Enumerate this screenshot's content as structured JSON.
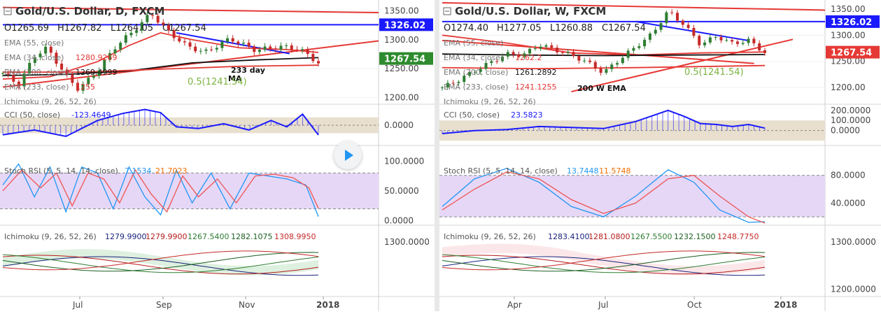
{
  "chart_data": [
    {
      "type": "candlestick",
      "title": "Gold/U.S. Dollar, D, FXCM",
      "ohlc": {
        "o": "O1265.69",
        "h": "H1267.82",
        "l": "L1264.05",
        "c": "C1267.54"
      },
      "price_axis": {
        "ticks": [
          "1350.00",
          "1300.00",
          "1250.00",
          "1200.00"
        ],
        "ylim": [
          1192,
          1364
        ]
      },
      "price_tags": [
        {
          "label": "1326.02",
          "value": 1326.02,
          "color": "#1a1aff"
        },
        {
          "label": "1267.54",
          "value": 1267.54,
          "color": "#2e8b2e"
        }
      ],
      "legend": [
        {
          "text": "EMA (55, close)",
          "value": "",
          "color": "#e53935"
        },
        {
          "text": "EMA (34, close)",
          "value": "1280.9269",
          "color": "#e53935"
        },
        {
          "text": "EMA (200, close)",
          "value": "1269.4999",
          "color": "#111111"
        },
        {
          "text": "EMA (233, close)",
          "value": "1255",
          "color": "#e53935"
        },
        {
          "text": "Ichimoku (9, 26, 52, 26)",
          "value": "",
          "color": "#888888"
        }
      ],
      "annotations": [
        "233 day",
        "MA",
        "0.5(1241.54)"
      ],
      "series": [
        {
          "name": "EMA 34",
          "color": "#e53935",
          "points": [
            [
              0,
              1232
            ],
            [
              0.15,
              1236
            ],
            [
              0.3,
              1262
            ],
            [
              0.4,
              1290
            ],
            [
              0.5,
              1312
            ],
            [
              0.6,
              1300
            ],
            [
              0.75,
              1286
            ],
            [
              0.9,
              1283
            ],
            [
              1,
              1278
            ]
          ]
        },
        {
          "name": "EMA 200",
          "color": "#111111",
          "points": [
            [
              0,
              1238
            ],
            [
              0.2,
              1240
            ],
            [
              0.4,
              1246
            ],
            [
              0.6,
              1260
            ],
            [
              0.8,
              1265
            ],
            [
              1,
              1269
            ]
          ]
        },
        {
          "name": "EMA 233",
          "color": "#e53935",
          "points": [
            [
              0,
              1244
            ],
            [
              0.25,
              1244
            ],
            [
              0.5,
              1249
            ],
            [
              0.75,
              1254
            ],
            [
              1,
              1256
            ]
          ]
        }
      ],
      "close_path": [
        [
          0,
          1242
        ],
        [
          0.05,
          1222
        ],
        [
          0.1,
          1272
        ],
        [
          0.14,
          1286
        ],
        [
          0.2,
          1238
        ],
        [
          0.24,
          1214
        ],
        [
          0.3,
          1246
        ],
        [
          0.36,
          1290
        ],
        [
          0.42,
          1318
        ],
        [
          0.47,
          1346
        ],
        [
          0.52,
          1316
        ],
        [
          0.58,
          1290
        ],
        [
          0.64,
          1278
        ],
        [
          0.72,
          1302
        ],
        [
          0.8,
          1282
        ],
        [
          0.88,
          1288
        ],
        [
          0.94,
          1284
        ],
        [
          1,
          1260
        ]
      ],
      "trendlines": [
        {
          "from": [
            0.0,
            1356
          ],
          "to": [
            1.0,
            1347
          ],
          "color": "#e53935"
        },
        {
          "from": [
            0.0,
            1218
          ],
          "to": [
            1.0,
            1298
          ],
          "color": "#e53935"
        },
        {
          "from": [
            0.55,
            1312
          ],
          "to": [
            0.82,
            1276
          ],
          "color": "#1a1aff"
        },
        {
          "from": [
            0.0,
            1326.02
          ],
          "to": [
            1.0,
            1326.02
          ],
          "color": "#1a1aff"
        }
      ],
      "x_labels": [
        "Jul",
        "Sep",
        "Nov",
        "2018"
      ],
      "indicators": [
        {
          "name": "CCI",
          "legend": "CCI (50, close)",
          "value": "-123.4649",
          "axis": [
            "0.0000"
          ],
          "band": [
            -100,
            100
          ],
          "ylim": [
            -220,
            240
          ],
          "path": [
            [
              0,
              -120
            ],
            [
              0.1,
              -60
            ],
            [
              0.2,
              -140
            ],
            [
              0.3,
              60
            ],
            [
              0.38,
              150
            ],
            [
              0.45,
              200
            ],
            [
              0.5,
              160
            ],
            [
              0.55,
              -20
            ],
            [
              0.62,
              -40
            ],
            [
              0.7,
              20
            ],
            [
              0.78,
              -60
            ],
            [
              0.85,
              60
            ],
            [
              0.9,
              -20
            ],
            [
              0.95,
              140
            ],
            [
              1,
              -123
            ]
          ]
        },
        {
          "name": "Stoch RSI",
          "legend": "Stoch RSI (5, 5, 14, 14, close)",
          "values": [
            "7.1534",
            "21.7023"
          ],
          "axis": [
            "100.0000",
            "50.0000",
            "0.0000"
          ],
          "band": [
            20,
            80
          ],
          "ylim": [
            -5,
            105
          ],
          "k": [
            [
              0,
              60
            ],
            [
              0.05,
              95
            ],
            [
              0.1,
              40
            ],
            [
              0.15,
              90
            ],
            [
              0.2,
              15
            ],
            [
              0.25,
              90
            ],
            [
              0.3,
              80
            ],
            [
              0.35,
              20
            ],
            [
              0.4,
              90
            ],
            [
              0.45,
              40
            ],
            [
              0.5,
              10
            ],
            [
              0.55,
              85
            ],
            [
              0.6,
              30
            ],
            [
              0.66,
              80
            ],
            [
              0.72,
              20
            ],
            [
              0.78,
              80
            ],
            [
              0.84,
              75
            ],
            [
              0.9,
              70
            ],
            [
              0.96,
              60
            ],
            [
              1,
              7
            ]
          ],
          "d": [
            [
              0,
              50
            ],
            [
              0.06,
              85
            ],
            [
              0.12,
              55
            ],
            [
              0.17,
              80
            ],
            [
              0.22,
              25
            ],
            [
              0.27,
              80
            ],
            [
              0.32,
              70
            ],
            [
              0.37,
              30
            ],
            [
              0.42,
              85
            ],
            [
              0.47,
              45
            ],
            [
              0.52,
              15
            ],
            [
              0.57,
              75
            ],
            [
              0.62,
              40
            ],
            [
              0.68,
              70
            ],
            [
              0.74,
              30
            ],
            [
              0.8,
              75
            ],
            [
              0.86,
              78
            ],
            [
              0.92,
              72
            ],
            [
              0.97,
              55
            ],
            [
              1,
              21
            ]
          ]
        },
        {
          "name": "Ichimoku",
          "legend": "Ichimoku (9, 26, 52, 26)",
          "values": [
            "1279.9900",
            "1279.9900",
            "1267.5400",
            "1282.1075",
            "1308.9950"
          ],
          "colors": [
            "#1a237e",
            "#b71c1c",
            "#2e7d32",
            "#1b5e20",
            "#c62828"
          ],
          "axis": [
            "1300.0000"
          ]
        }
      ]
    },
    {
      "type": "candlestick",
      "title": "Gold/U.S. Dollar, W, FXCM",
      "ohlc": {
        "o": "O1274.40",
        "h": "H1277.05",
        "l": "L1260.88",
        "c": "C1267.54"
      },
      "price_axis": {
        "ticks": [
          "1350.00",
          "1300.00",
          "1250.00",
          "1200.00"
        ],
        "ylim": [
          1172,
          1362
        ]
      },
      "price_tags": [
        {
          "label": "1326.02",
          "value": 1326.02,
          "color": "#1a1aff"
        },
        {
          "label": "1267.54",
          "value": 1267.54,
          "color": "#e53935"
        }
      ],
      "legend": [
        {
          "text": "EMA (55, close)",
          "value": "",
          "color": "#e53935"
        },
        {
          "text": "EMA (34, close)",
          "value": "1262.2",
          "color": "#e53935"
        },
        {
          "text": "EMA (200, close)",
          "value": "1261.2892",
          "color": "#111111"
        },
        {
          "text": "EMA (233, close)",
          "value": "1241.1255",
          "color": "#e53935"
        },
        {
          "text": "Ichimoku (9, 26, 52, 26)",
          "value": "",
          "color": "#888888"
        }
      ],
      "annotations": [
        "200 W EMA",
        "0.5(1241.54)"
      ],
      "series": [
        {
          "name": "EMA 34",
          "color": "#e53935",
          "points": [
            [
              0,
              1300
            ],
            [
              0.2,
              1285
            ],
            [
              0.4,
              1266
            ],
            [
              0.6,
              1262
            ],
            [
              0.8,
              1266
            ],
            [
              1,
              1268
            ]
          ]
        },
        {
          "name": "EMA 200",
          "color": "#111111",
          "points": [
            [
              0,
              1264
            ],
            [
              0.25,
              1262
            ],
            [
              0.5,
              1261
            ],
            [
              0.75,
              1262
            ],
            [
              1,
              1263
            ]
          ]
        },
        {
          "name": "EMA 233",
          "color": "#e53935",
          "points": [
            [
              0,
              1238
            ],
            [
              0.3,
              1236
            ],
            [
              0.6,
              1238
            ],
            [
              1,
              1242
            ]
          ]
        }
      ],
      "close_path": [
        [
          0,
          1200
        ],
        [
          0.05,
          1214
        ],
        [
          0.1,
          1232
        ],
        [
          0.15,
          1248
        ],
        [
          0.2,
          1264
        ],
        [
          0.25,
          1262
        ],
        [
          0.3,
          1282
        ],
        [
          0.35,
          1272
        ],
        [
          0.4,
          1262
        ],
        [
          0.45,
          1248
        ],
        [
          0.5,
          1228
        ],
        [
          0.55,
          1254
        ],
        [
          0.6,
          1278
        ],
        [
          0.65,
          1302
        ],
        [
          0.7,
          1346
        ],
        [
          0.75,
          1320
        ],
        [
          0.8,
          1282
        ],
        [
          0.85,
          1298
        ],
        [
          0.9,
          1284
        ],
        [
          0.95,
          1290
        ],
        [
          1,
          1267
        ]
      ],
      "trendlines": [
        {
          "from": [
            0.0,
            1362
          ],
          "to": [
            1.0,
            1348
          ],
          "color": "#e53935"
        },
        {
          "from": [
            0.4,
            1192
          ],
          "to": [
            1.0,
            1292
          ],
          "color": "#e53935"
        },
        {
          "from": [
            0.6,
            1326
          ],
          "to": [
            0.86,
            1290
          ],
          "color": "#1a1aff"
        },
        {
          "from": [
            0.0,
            1326.02
          ],
          "to": [
            1.0,
            1326.02
          ],
          "color": "#1a1aff"
        },
        {
          "from": [
            0.0,
            1290
          ],
          "to": [
            0.88,
            1246
          ],
          "color": "#e53935"
        }
      ],
      "x_labels": [
        "Apr",
        "Jul",
        "Oct",
        "2018"
      ],
      "indicators": [
        {
          "name": "CCI",
          "legend": "CCI (50, close)",
          "value": "23.5823",
          "axis": [
            "200.0000",
            "100.0000",
            "0.0000"
          ],
          "band": [
            -100,
            100
          ],
          "ylim": [
            -120,
            240
          ],
          "path": [
            [
              0,
              -30
            ],
            [
              0.1,
              0
            ],
            [
              0.2,
              10
            ],
            [
              0.3,
              40
            ],
            [
              0.4,
              30
            ],
            [
              0.5,
              20
            ],
            [
              0.6,
              90
            ],
            [
              0.7,
              200
            ],
            [
              0.75,
              140
            ],
            [
              0.8,
              70
            ],
            [
              0.85,
              60
            ],
            [
              0.9,
              40
            ],
            [
              0.95,
              60
            ],
            [
              1,
              24
            ]
          ]
        },
        {
          "name": "Stoch RSI",
          "legend": "Stoch RSI (5, 5, 14, 14, close)",
          "values": [
            "13.7448",
            "11.5748"
          ],
          "axis": [
            "80.0000",
            "40.0000"
          ],
          "band": [
            20,
            80
          ],
          "ylim": [
            10,
            105
          ],
          "k": [
            [
              0,
              35
            ],
            [
              0.1,
              75
            ],
            [
              0.2,
              90
            ],
            [
              0.3,
              70
            ],
            [
              0.4,
              35
            ],
            [
              0.5,
              20
            ],
            [
              0.6,
              50
            ],
            [
              0.7,
              88
            ],
            [
              0.78,
              70
            ],
            [
              0.86,
              30
            ],
            [
              0.95,
              12
            ],
            [
              1,
              13
            ]
          ],
          "d": [
            [
              0,
              30
            ],
            [
              0.1,
              60
            ],
            [
              0.2,
              85
            ],
            [
              0.3,
              75
            ],
            [
              0.4,
              45
            ],
            [
              0.5,
              25
            ],
            [
              0.6,
              40
            ],
            [
              0.7,
              75
            ],
            [
              0.78,
              80
            ],
            [
              0.86,
              50
            ],
            [
              0.95,
              20
            ],
            [
              1,
              11
            ]
          ]
        },
        {
          "name": "Ichimoku",
          "legend": "Ichimoku (9, 26, 52, 26)",
          "values": [
            "1283.4100",
            "1281.0800",
            "1267.5500",
            "1232.1500",
            "1248.7750"
          ],
          "colors": [
            "#1a237e",
            "#b71c1c",
            "#2e7d32",
            "#1b5e20",
            "#c62828"
          ],
          "axis": [
            "1300.0000",
            "1200.0000"
          ]
        }
      ]
    }
  ]
}
